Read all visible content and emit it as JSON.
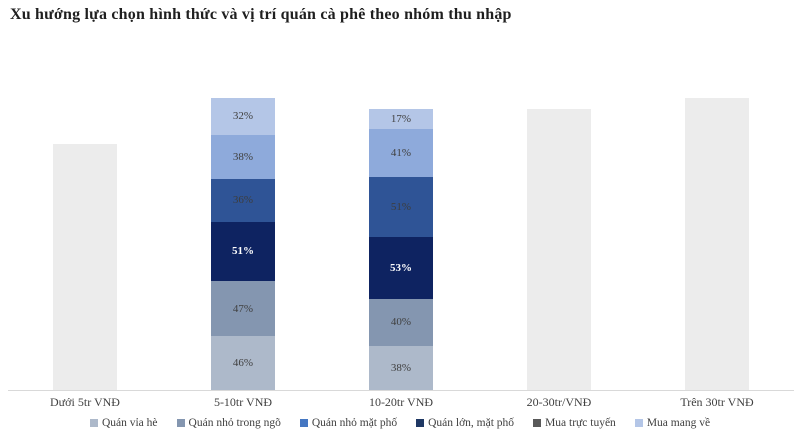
{
  "title": "Xu hướng lựa chọn hình thức và vị trí quán cà phê theo nhóm thu nhập",
  "chart_data": {
    "type": "bar",
    "stacked": true,
    "title": "Xu hướng lựa chọn hình thức và vị trí quán cà phê theo nhóm thu nhập",
    "legend_position": "bottom",
    "grid": false,
    "value_suffix": "%",
    "axis_line_color": "#d9d9d9",
    "categories": [
      "Dưới 5tr VNĐ",
      "5-10tr VNĐ",
      "10-20tr VNĐ",
      "20-30tr/VNĐ",
      "Trên 30tr VNĐ"
    ],
    "series": [
      {
        "name": "Quán vỉa hè",
        "bar_color": "#adb9ca",
        "legend_color": "#adb9ca",
        "label_color": "#404040",
        "label_bold": false,
        "values": [
          null,
          46,
          38,
          null,
          null
        ]
      },
      {
        "name": "Quán nhỏ trong ngõ",
        "bar_color": "#8496b0",
        "legend_color": "#8496b0",
        "label_color": "#404040",
        "label_bold": false,
        "values": [
          null,
          47,
          40,
          null,
          null
        ]
      },
      {
        "name": "Quán nhỏ mặt phố",
        "bar_color": "#0e2361",
        "legend_color": "#4577c2",
        "label_color": "#ffffff",
        "label_bold": true,
        "values": [
          null,
          51,
          53,
          null,
          null
        ]
      },
      {
        "name": "Quán lớn, mặt phố",
        "bar_color": "#2f5496",
        "legend_color": "#1f3864",
        "label_color": "#3d3d3d",
        "label_bold": false,
        "values": [
          null,
          36,
          51,
          null,
          null
        ]
      },
      {
        "name": "Mua trực tuyến",
        "bar_color": "#8eaadb",
        "legend_color": "#595959",
        "label_color": "#404040",
        "label_bold": false,
        "values": [
          null,
          38,
          41,
          null,
          null
        ]
      },
      {
        "name": "Mua mang về",
        "bar_color": "#b4c6e7",
        "legend_color": "#b4c6e7",
        "label_color": "#404040",
        "label_bold": false,
        "values": [
          null,
          32,
          17,
          null,
          null
        ]
      }
    ],
    "placeholder_bars": {
      "color": "#ececec",
      "totals": [
        210,
        null,
        null,
        240,
        250
      ]
    },
    "ylim": [
      0,
      256
    ]
  }
}
